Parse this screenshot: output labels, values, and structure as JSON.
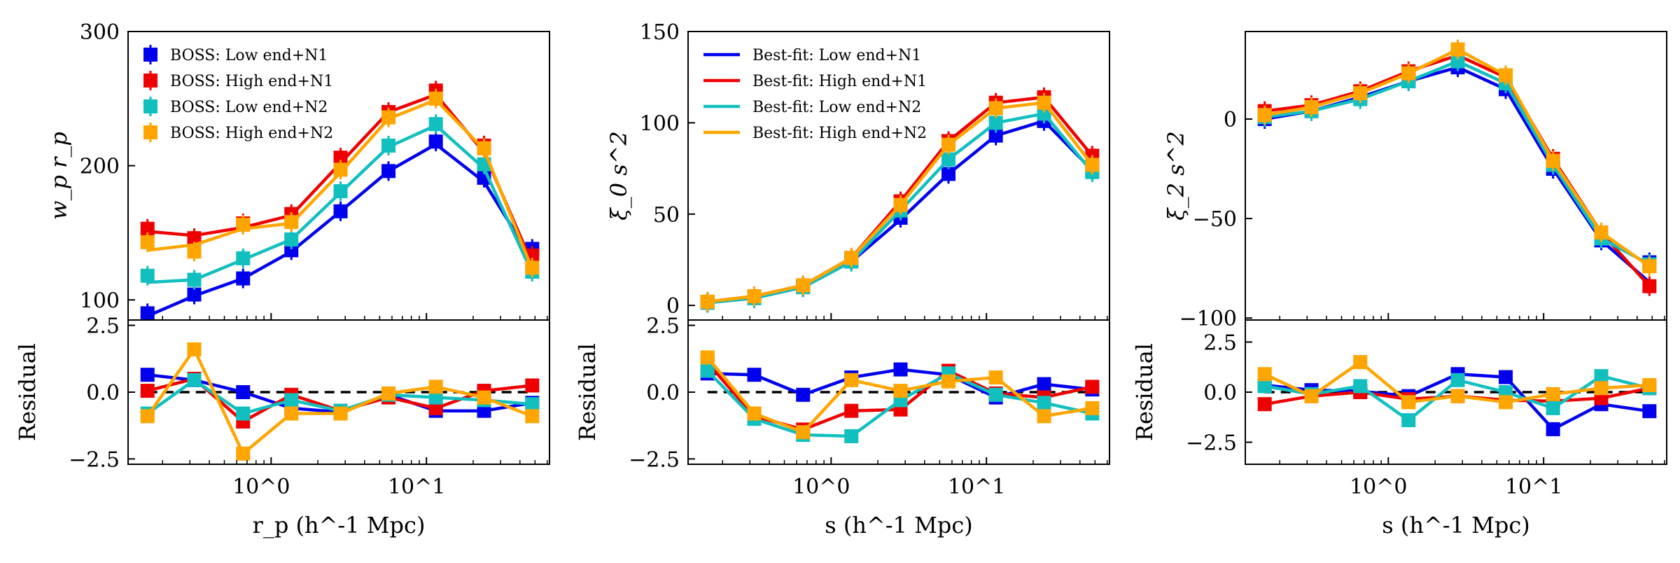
{
  "colors": {
    "n1_low": "#0000ee",
    "n1_high": "#ee0000",
    "n2_low": "#11bfbf",
    "n2_high": "#ffa500",
    "zero_line": "#000000"
  },
  "x_log_values": [
    0.16,
    0.32,
    0.66,
    1.35,
    2.8,
    5.7,
    11.5,
    23.5,
    48
  ],
  "chart_data": [
    {
      "type": "line",
      "panel": "wp",
      "top": {
        "ylabel": "w_p r_p",
        "ylim": [
          85,
          300
        ],
        "yticks": [
          100,
          200,
          300
        ],
        "ytick_labels": [
          "100",
          "200",
          "300"
        ],
        "markers": true,
        "series": [
          {
            "name": "BOSS: Low end+N1",
            "color_key": "n1_low",
            "values": [
              88,
              103,
              116,
              136,
              166,
              196,
              216,
              188,
              130
            ],
            "points": [
              90,
              104,
              116,
              137,
              166,
              196,
              218,
              191,
              138
            ]
          },
          {
            "name": "BOSS: High end+N1",
            "color_key": "n1_high",
            "values": [
              151,
              148,
              154,
              163,
              202,
              240,
              253,
              210,
              127
            ],
            "points": [
              153,
              146,
              157,
              164,
              206,
              240,
              256,
              215,
              133
            ]
          },
          {
            "name": "BOSS: Low end+N2",
            "color_key": "n2_low",
            "values": [
              113,
              115,
              130,
              145,
              180,
              214,
              230,
              198,
              120
            ],
            "points": [
              118,
              115,
              131,
              145,
              181,
              215,
              231,
              201,
              121
            ]
          },
          {
            "name": "BOSS: High end+N2",
            "color_key": "n2_high",
            "values": [
              137,
              141,
              153,
              157,
              195,
              235,
              249,
              212,
              123
            ],
            "points": [
              143,
              136,
              156,
              158,
              197,
              236,
              250,
              213,
              124
            ]
          }
        ],
        "legend": {
          "placement": "top-left",
          "style": "markers",
          "entries": [
            "BOSS: Low end+N1",
            "BOSS: High end+N1",
            "BOSS: Low end+N2",
            "BOSS: High end+N2"
          ]
        }
      },
      "residual": {
        "ylabel": "Residual",
        "ylim": [
          -2.7,
          2.7
        ],
        "yticks": [
          -2.5,
          0,
          2.5
        ],
        "ytick_labels": [
          "−2.5",
          "0.0",
          "2.5"
        ],
        "series": [
          {
            "name": "Low end+N1",
            "color_key": "n1_low",
            "values": [
              0.65,
              0.45,
              0.0,
              -0.6,
              -0.75,
              -0.1,
              -0.7,
              -0.7,
              -0.4
            ]
          },
          {
            "name": "High end+N1",
            "color_key": "n1_high",
            "values": [
              0.05,
              0.5,
              -1.1,
              -0.1,
              -0.7,
              -0.2,
              -0.6,
              0.05,
              0.25
            ]
          },
          {
            "name": "Low end+N2",
            "color_key": "n2_low",
            "values": [
              -0.8,
              0.45,
              -0.8,
              -0.3,
              -0.7,
              -0.1,
              -0.2,
              -0.3,
              -0.45
            ]
          },
          {
            "name": "High end+N2",
            "color_key": "n2_high",
            "values": [
              -0.9,
              1.6,
              -2.3,
              -0.8,
              -0.8,
              -0.05,
              0.2,
              -0.2,
              -0.9
            ]
          }
        ]
      },
      "xlabel": "r_p (h^-1 Mpc)",
      "xscale": "log",
      "xlim": [
        0.12,
        62
      ],
      "xtick_labels": [
        "10^0",
        "10^1"
      ]
    },
    {
      "type": "line",
      "panel": "xi0",
      "top": {
        "ylabel": "ξ_0 s^2",
        "ylim": [
          -8,
          150
        ],
        "yticks": [
          0,
          50,
          100,
          150
        ],
        "ytick_labels": [
          "0",
          "50",
          "100",
          "150"
        ],
        "markers": true,
        "series": [
          {
            "name": "Best-fit: Low end+N1",
            "color_key": "n1_low",
            "values": [
              1.5,
              4,
              10,
              24,
              47,
              72,
              93,
              101,
              74
            ],
            "points": [
              1.5,
              4,
              10,
              24,
              48,
              72,
              93,
              101,
              74
            ]
          },
          {
            "name": "Best-fit: High end+N1",
            "color_key": "n1_high",
            "values": [
              2,
              5,
              11,
              26,
              57,
              90,
              111,
              114,
              82
            ],
            "points": [
              2,
              5,
              11,
              26,
              57,
              90,
              111,
              114,
              82
            ]
          },
          {
            "name": "Best-fit: Low end+N2",
            "color_key": "n2_low",
            "values": [
              1.5,
              4,
              10,
              24,
              52,
              80,
              100,
              105,
              73
            ],
            "points": [
              1.5,
              4,
              10,
              24,
              52,
              80,
              100,
              105,
              73
            ]
          },
          {
            "name": "Best-fit: High end+N2",
            "color_key": "n2_high",
            "values": [
              2,
              5,
              11,
              26,
              55,
              88,
              108,
              111,
              77
            ],
            "points": [
              2,
              5,
              11,
              26,
              55,
              88,
              108,
              111,
              77
            ]
          }
        ],
        "legend": {
          "placement": "top-left",
          "style": "lines",
          "entries": [
            "Best-fit: Low end+N1",
            "Best-fit: High end+N1",
            "Best-fit: Low end+N2",
            "Best-fit: High end+N2"
          ]
        }
      },
      "residual": {
        "ylabel": "Residual",
        "ylim": [
          -2.7,
          2.7
        ],
        "yticks": [
          -2.5,
          0,
          2.5
        ],
        "ytick_labels": [
          "−2.5",
          "0.0",
          "2.5"
        ],
        "series": [
          {
            "name": "Low end+N1",
            "color_key": "n1_low",
            "values": [
              0.7,
              0.65,
              -0.1,
              0.55,
              0.85,
              0.65,
              -0.2,
              0.3,
              0.1
            ]
          },
          {
            "name": "High end+N1",
            "color_key": "n1_high",
            "values": [
              1.1,
              -0.9,
              -1.4,
              -0.7,
              -0.65,
              0.8,
              -0.05,
              -0.2,
              0.2
            ]
          },
          {
            "name": "Low end+N2",
            "color_key": "n2_low",
            "values": [
              0.8,
              -1.0,
              -1.6,
              -1.65,
              -0.3,
              0.7,
              -0.1,
              -0.4,
              -0.8
            ]
          },
          {
            "name": "High end+N2",
            "color_key": "n2_high",
            "values": [
              1.3,
              -0.8,
              -1.5,
              0.45,
              0.05,
              0.4,
              0.55,
              -0.9,
              -0.6
            ]
          }
        ]
      },
      "xlabel": "s (h^-1 Mpc)",
      "xscale": "log",
      "xlim": [
        0.12,
        62
      ],
      "xtick_labels": [
        "10^0",
        "10^1"
      ]
    },
    {
      "type": "line",
      "panel": "xi2",
      "top": {
        "ylabel": "ξ_2 s^2",
        "ylim": [
          -101,
          44
        ],
        "yticks": [
          -100,
          -50,
          0
        ],
        "ytick_labels": [
          "−100",
          "−50",
          "0"
        ],
        "markers": true,
        "series": [
          {
            "name": "Low end+N1",
            "color_key": "n1_low",
            "values": [
              0,
              4,
              11,
              19,
              26,
              15,
              -25,
              -61,
              -82
            ],
            "points": [
              0,
              4,
              11,
              19,
              26,
              15,
              -25,
              -61,
              -72
            ]
          },
          {
            "name": "High end+N1",
            "color_key": "n1_high",
            "values": [
              4,
              7,
              14,
              24,
              32,
              21,
              -20,
              -57,
              -84
            ],
            "points": [
              4,
              7,
              14,
              24,
              32,
              21,
              -20,
              -57,
              -84
            ]
          },
          {
            "name": "Low end+N2",
            "color_key": "n2_low",
            "values": [
              1,
              4,
              10,
              19,
              29,
              18,
              -23,
              -60,
              -73
            ],
            "points": [
              1,
              4,
              10,
              19,
              29,
              18,
              -23,
              -60,
              -73
            ]
          },
          {
            "name": "High end+N2",
            "color_key": "n2_high",
            "values": [
              2,
              6,
              13,
              23,
              35,
              22,
              -21,
              -57,
              -74
            ],
            "points": [
              2,
              6,
              13,
              23,
              35,
              22,
              -21,
              -57,
              -74
            ]
          }
        ]
      },
      "residual": {
        "ylabel": "Residual",
        "ylim": [
          -3.6,
          3.6
        ],
        "yticks": [
          -2.5,
          0,
          2.5
        ],
        "ytick_labels": [
          "−2.5",
          "0.0",
          "2.5"
        ],
        "series": [
          {
            "name": "Low end+N1",
            "color_key": "n1_low",
            "values": [
              0.35,
              0.1,
              0.05,
              -0.2,
              0.9,
              0.75,
              -1.85,
              -0.6,
              -0.95
            ]
          },
          {
            "name": "High end+N1",
            "color_key": "n1_high",
            "values": [
              -0.6,
              -0.2,
              0.0,
              -0.35,
              -0.2,
              -0.4,
              -0.45,
              -0.3,
              0.2
            ]
          },
          {
            "name": "Low end+N2",
            "color_key": "n2_low",
            "values": [
              0.3,
              -0.1,
              0.3,
              -1.4,
              0.6,
              0.0,
              -0.8,
              0.8,
              0.2
            ]
          },
          {
            "name": "High end+N2",
            "color_key": "n2_high",
            "values": [
              0.9,
              -0.2,
              1.5,
              -0.5,
              -0.2,
              -0.5,
              -0.1,
              0.2,
              0.35
            ]
          }
        ]
      },
      "xlabel": "s (h^-1 Mpc)",
      "xscale": "log",
      "xlim": [
        0.12,
        62
      ],
      "xtick_labels": [
        "10^0",
        "10^1"
      ]
    }
  ]
}
